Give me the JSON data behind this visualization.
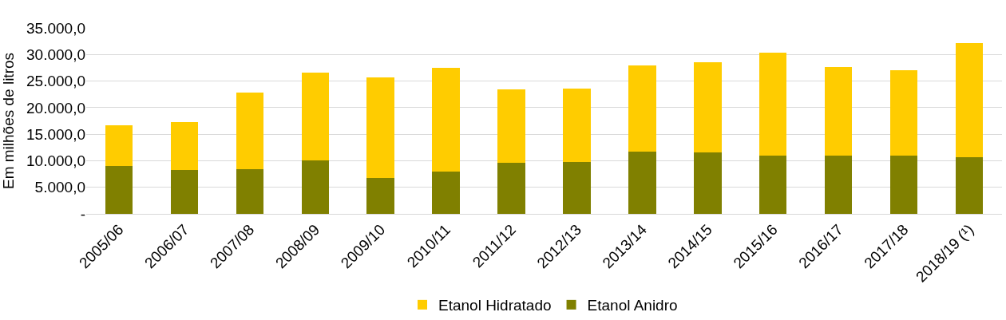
{
  "chart_data": {
    "type": "bar",
    "stacked": true,
    "ylabel": "Em milhões de litros",
    "categories": [
      "2005/06",
      "2006/07",
      "2007/08",
      "2008/09",
      "2009/10",
      "2010/11",
      "2011/12",
      "2012/13",
      "2013/14",
      "2014/15",
      "2015/16",
      "2016/17",
      "2017/18",
      "2018/19 (¹)"
    ],
    "series": [
      {
        "name": "Etanol Anidro",
        "color": "#808000",
        "values": [
          9000,
          8200,
          8400,
          10000,
          6800,
          8000,
          9600,
          9800,
          11700,
          11600,
          11000,
          10900,
          10900,
          10600
        ]
      },
      {
        "name": "Etanol Hidratado",
        "color": "#ffcc00",
        "values": [
          7700,
          9100,
          14500,
          16600,
          18900,
          19500,
          13800,
          13800,
          16200,
          17000,
          19400,
          16800,
          16200,
          21600
        ]
      }
    ],
    "ylim": [
      0,
      35000
    ],
    "yticks": [
      {
        "value": 0,
        "label": "-"
      },
      {
        "value": 5000,
        "label": "5.000,0"
      },
      {
        "value": 10000,
        "label": "10.000,0"
      },
      {
        "value": 15000,
        "label": "15.000,0"
      },
      {
        "value": 20000,
        "label": "20.000,0"
      },
      {
        "value": 25000,
        "label": "25.000,0"
      },
      {
        "value": 30000,
        "label": "30.000,0"
      },
      {
        "value": 35000,
        "label": "35.000,0"
      }
    ],
    "grid": "y",
    "legend": "bottom"
  }
}
